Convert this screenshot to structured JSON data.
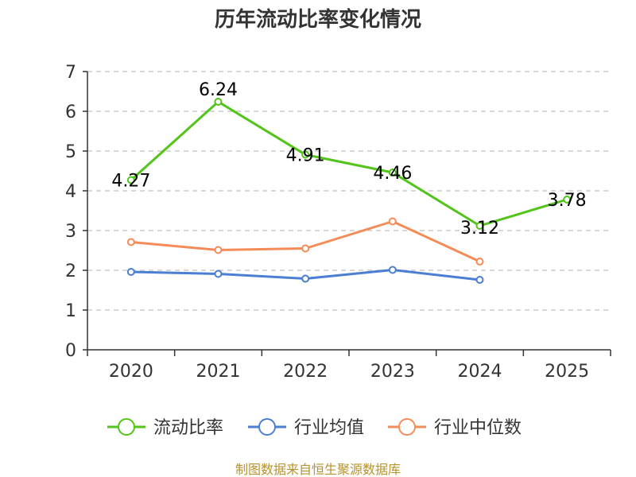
{
  "chart_data": {
    "type": "line",
    "title": "历年流动比率变化情况",
    "categories": [
      "2020",
      "2021",
      "2022",
      "2023",
      "2024",
      "2025"
    ],
    "ylim": [
      0,
      7
    ],
    "yticks": [
      0,
      1,
      2,
      3,
      4,
      5,
      6,
      7
    ],
    "grid": true,
    "legend_position": "bottom",
    "series": [
      {
        "name": "流动比率",
        "color": "#52c41a",
        "values": [
          4.27,
          6.24,
          4.91,
          4.46,
          3.12,
          3.78
        ],
        "labels": [
          "4.27",
          "6.24",
          "4.91",
          "4.46",
          "3.12",
          "3.78"
        ]
      },
      {
        "name": "行业均值",
        "color": "#4a7fd4",
        "values": [
          1.96,
          1.91,
          1.79,
          2.01,
          1.76,
          null
        ]
      },
      {
        "name": "行业中位数",
        "color": "#f58c57",
        "values": [
          2.71,
          2.51,
          2.55,
          3.23,
          2.22,
          null
        ]
      }
    ],
    "source": "制图数据来自恒生聚源数据库"
  }
}
